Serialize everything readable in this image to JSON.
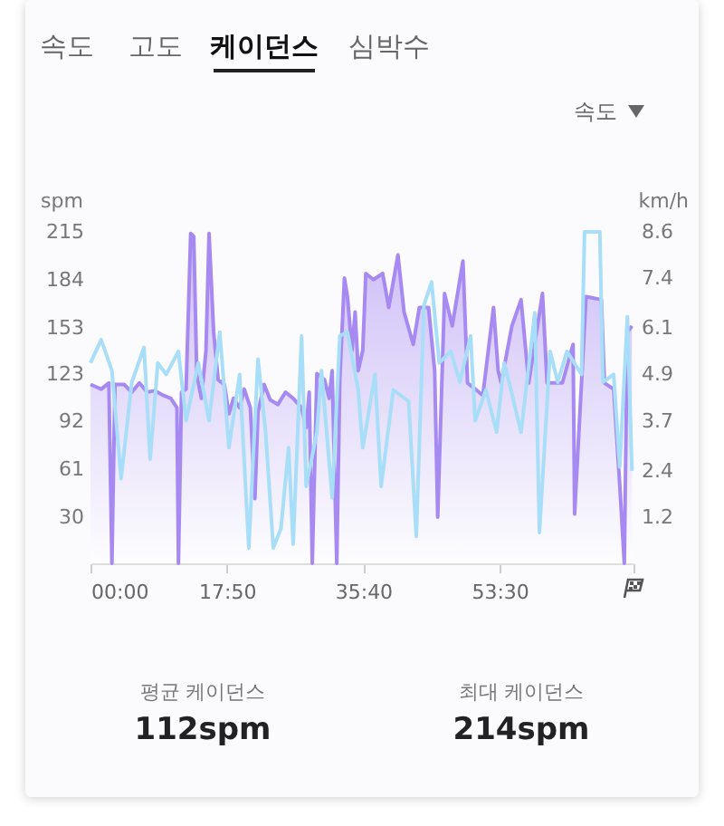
{
  "chart_data": {
    "type": "area",
    "ylabel": "spm",
    "y2label": "km/h",
    "annotations": [
      "속도",
      "고도",
      "케이던스",
      "심박수",
      "속도",
      "평균 케이던스",
      "112spm",
      "최대 케이던스",
      "214spm"
    ],
    "xlim": [
      0,
      71
    ],
    "xticks": [
      {
        "value": 0,
        "label": "00:00"
      },
      {
        "value": 17.8333,
        "label": "17:50"
      },
      {
        "value": 35.6667,
        "label": "35:40"
      },
      {
        "value": 53.5,
        "label": "53:30"
      },
      {
        "value": 71,
        "label": null
      }
    ],
    "ylim": [
      0,
      215
    ],
    "yticks": [
      30,
      61,
      92,
      123,
      153,
      184,
      215
    ],
    "y2lim": [
      0,
      8.6
    ],
    "y2ticks": [
      1.2,
      2.4,
      3.7,
      4.9,
      6.1,
      7.4,
      8.6
    ],
    "marker": "none",
    "series": [
      {
        "color": "#a68af2",
        "x": [
          0,
          1.4,
          2.4,
          2.8,
          3.2,
          4.4,
          5.4,
          6.4,
          7.4,
          8.4,
          9.5,
          10.5,
          11.3,
          11.5,
          11.9,
          12.5,
          13.1,
          13.5,
          13.9,
          14.5,
          15.1,
          15.5,
          16.1,
          16.7,
          17.5,
          18.1,
          18.7,
          19.5,
          20.1,
          20.9,
          21.5,
          21.9,
          22.7,
          23.5,
          24.5,
          25.5,
          26.5,
          27.6,
          28.2,
          28.6,
          29.0,
          29.6,
          30.6,
          31.2,
          31.6,
          32.2,
          32.6,
          33.2,
          33.6,
          34.2,
          34.6,
          35.0,
          35.6,
          36.0,
          37.0,
          38.2,
          39.0,
          40.2,
          41.0,
          42.2,
          43.0,
          44.2,
          45.0,
          45.4,
          46.3,
          47.3,
          48.7,
          49.3,
          50.3,
          51.3,
          52.7,
          53.3,
          53.7,
          55.1,
          56.3,
          57.3,
          59.1,
          59.7,
          61.7,
          63.1,
          63.3,
          64.2,
          64.8,
          66.8,
          67.2,
          68.4,
          69.2,
          69.8,
          70.2,
          70.8
        ],
        "values": [
          116,
          113,
          117,
          0,
          116,
          116,
          111,
          117,
          111,
          112,
          109,
          107,
          101,
          0,
          111,
          113,
          214,
          212,
          122,
          107,
          138,
          214,
          150,
          119,
          116,
          97,
          107,
          101,
          113,
          101,
          42,
          98,
          116,
          106,
          103,
          111,
          107,
          101,
          88,
          111,
          0,
          123,
          119,
          107,
          125,
          0,
          119,
          185,
          173,
          138,
          163,
          125,
          138,
          188,
          184,
          188,
          166,
          200,
          163,
          142,
          166,
          166,
          125,
          30,
          175,
          154,
          196,
          117,
          113,
          109,
          166,
          125,
          117,
          154,
          171,
          117,
          175,
          117,
          117,
          142,
          32,
          117,
          173,
          171,
          117,
          113,
          51,
          0,
          150,
          154
        ]
      },
      {
        "type": "line",
        "axis": "y2",
        "color": "#a8def8",
        "x": [
          0,
          1.4,
          2.8,
          4.0,
          5.4,
          7.0,
          7.8,
          8.8,
          9.9,
          11.5,
          12.5,
          14.1,
          15.5,
          16.9,
          18.1,
          19.5,
          20.7,
          21.9,
          22.9,
          23.9,
          24.9,
          25.9,
          26.5,
          27.6,
          28.2,
          29.6,
          30.2,
          31.6,
          32.6,
          33.6,
          35.0,
          35.6,
          37.2,
          38.0,
          39.6,
          41.6,
          42.6,
          43.6,
          44.6,
          45.6,
          47.1,
          48.3,
          49.7,
          50.3,
          51.7,
          53.1,
          54.1,
          55.1,
          56.3,
          58.1,
          58.7,
          60.1,
          61.1,
          62.3,
          64.2,
          64.6,
          66.6,
          67.0,
          68.4,
          69.2,
          70.2,
          70.8
        ],
        "values": [
          5.2,
          5.8,
          5.0,
          2.2,
          4.7,
          5.6,
          2.7,
          5.2,
          4.9,
          5.5,
          3.7,
          5.2,
          3.7,
          6.0,
          3.0,
          4.9,
          0.4,
          5.3,
          3.4,
          0.4,
          0.9,
          3.0,
          0.5,
          5.9,
          2.0,
          3.4,
          5.0,
          1.7,
          5.9,
          6.0,
          4.5,
          3.0,
          4.9,
          2.0,
          4.5,
          4.2,
          0.7,
          6.7,
          7.3,
          5.2,
          5.5,
          4.7,
          5.9,
          3.7,
          4.5,
          3.4,
          5.2,
          4.4,
          3.4,
          6.5,
          0.8,
          5.5,
          4.7,
          5.5,
          4.9,
          8.6,
          8.6,
          4.7,
          4.9,
          2.5,
          6.4,
          2.4
        ]
      }
    ]
  }
}
